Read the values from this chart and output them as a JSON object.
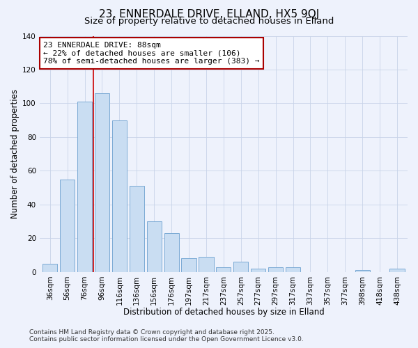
{
  "title": "23, ENNERDALE DRIVE, ELLAND, HX5 9QJ",
  "subtitle": "Size of property relative to detached houses in Elland",
  "xlabel": "Distribution of detached houses by size in Elland",
  "ylabel": "Number of detached properties",
  "bar_labels": [
    "36sqm",
    "56sqm",
    "76sqm",
    "96sqm",
    "116sqm",
    "136sqm",
    "156sqm",
    "176sqm",
    "197sqm",
    "217sqm",
    "237sqm",
    "257sqm",
    "277sqm",
    "297sqm",
    "317sqm",
    "337sqm",
    "357sqm",
    "377sqm",
    "398sqm",
    "418sqm",
    "438sqm"
  ],
  "bar_values": [
    5,
    55,
    101,
    106,
    90,
    51,
    30,
    23,
    8,
    9,
    3,
    6,
    2,
    3,
    3,
    0,
    0,
    0,
    1,
    0,
    2
  ],
  "bar_color": "#c9ddf2",
  "bar_edge_color": "#7baad4",
  "vline_x": 2.5,
  "vline_color": "#cc0000",
  "ylim": [
    0,
    140
  ],
  "yticks": [
    0,
    20,
    40,
    60,
    80,
    100,
    120,
    140
  ],
  "annotation_line1": "23 ENNERDALE DRIVE: 88sqm",
  "annotation_line2": "← 22% of detached houses are smaller (106)",
  "annotation_line3": "78% of semi-detached houses are larger (383) →",
  "annotation_box_color": "#ffffff",
  "annotation_border_color": "#aa0000",
  "bg_color": "#eef2fc",
  "footer_line1": "Contains HM Land Registry data © Crown copyright and database right 2025.",
  "footer_line2": "Contains public sector information licensed under the Open Government Licence v3.0.",
  "grid_color": "#c8d4e8",
  "title_fontsize": 11,
  "subtitle_fontsize": 9.5,
  "axis_label_fontsize": 8.5,
  "tick_fontsize": 7.5,
  "annotation_fontsize": 8,
  "footer_fontsize": 6.5
}
